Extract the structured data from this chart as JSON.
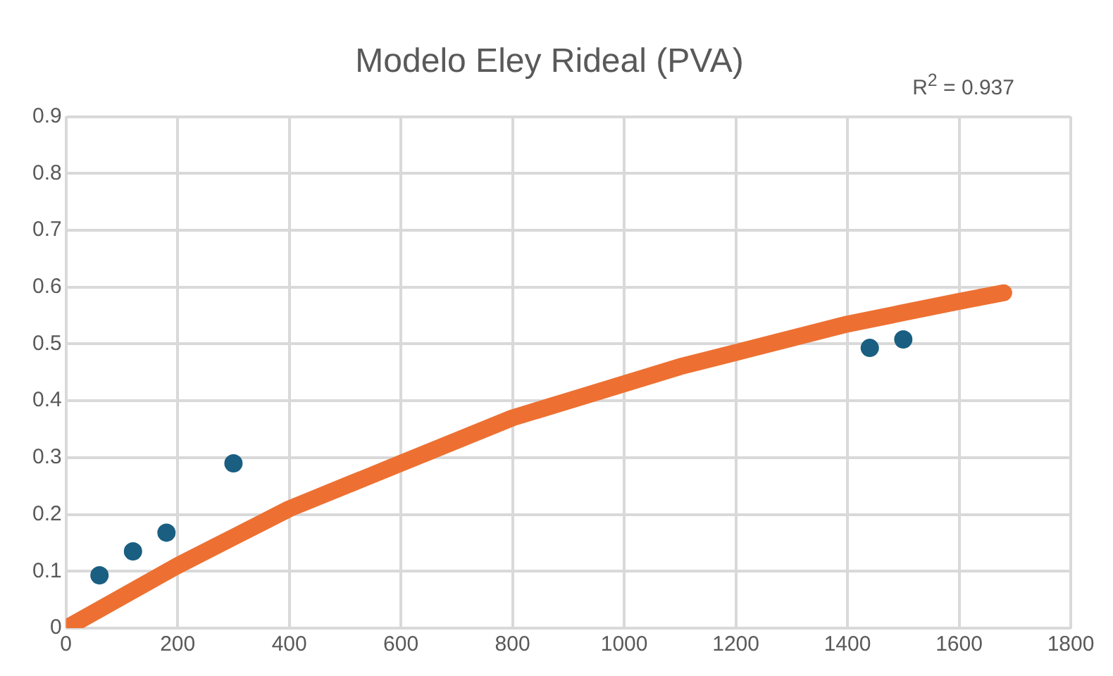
{
  "chart_data": {
    "type": "scatter",
    "title": "Modelo Eley Rideal (PVA)",
    "annotations": [
      "R$^{2}$ = 0.937"
    ],
    "xlim": [
      0,
      1800
    ],
    "xticks": [
      0,
      200,
      400,
      600,
      800,
      1000,
      1200,
      1400,
      1600,
      1800
    ],
    "ylim": [
      0,
      0.9
    ],
    "yticks": [
      0,
      0.1,
      0.2,
      0.3,
      0.4,
      0.5,
      0.6,
      0.7,
      0.8,
      0.9
    ],
    "grid": true,
    "legend": false,
    "series": [
      {
        "type": "line",
        "marker": "none",
        "color": "#ed7032",
        "x": [
          0,
          100,
          200,
          300,
          400,
          500,
          600,
          700,
          800,
          900,
          1000,
          1100,
          1200,
          1300,
          1400,
          1500,
          1600,
          1680
        ],
        "values": [
          0,
          0.055,
          0.11,
          0.16,
          0.21,
          0.25,
          0.29,
          0.33,
          0.37,
          0.4,
          0.43,
          0.46,
          0.485,
          0.51,
          0.535,
          0.555,
          0.575,
          0.59
        ]
      },
      {
        "marker": "circle",
        "color": "#1a5f82",
        "x": [
          60,
          120,
          180,
          300,
          1440,
          1500
        ],
        "values": [
          0.093,
          0.135,
          0.168,
          0.29,
          0.493,
          0.508
        ]
      }
    ]
  }
}
